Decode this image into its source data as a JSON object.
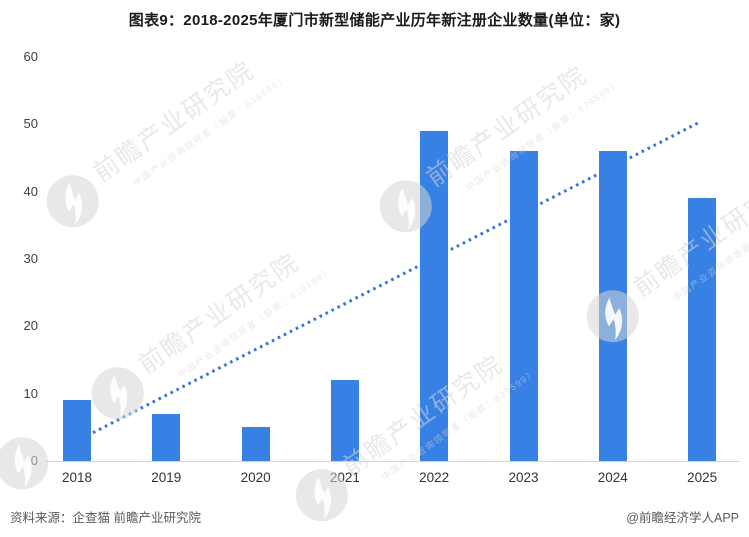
{
  "chart_data": {
    "type": "bar",
    "title": "图表9：2018-2025年厦门市新型储能产业历年新注册企业数量(单位：家)",
    "categories": [
      "2018",
      "2019",
      "2020",
      "2021",
      "2022",
      "2023",
      "2024",
      "2025"
    ],
    "values": [
      9,
      7,
      5,
      12,
      49,
      46,
      46,
      39
    ],
    "xlabel": "",
    "ylabel": "",
    "ylim": [
      0,
      60
    ],
    "yticks": [
      0,
      10,
      20,
      30,
      40,
      50,
      60
    ],
    "grid": false,
    "legend": false,
    "bar_color": "#3780E4",
    "trendline": {
      "style": "dotted",
      "color": "#3272E2",
      "start_value": 4.2,
      "end_value": 50.2
    }
  },
  "footer": {
    "source": "资料来源：企查猫 前瞻产业研究院",
    "credit": "@前瞻经济学人APP"
  },
  "watermark": {
    "brand": "前瞻产业研究院",
    "tagline": "中国产业咨询领导者（股票：839599）"
  }
}
